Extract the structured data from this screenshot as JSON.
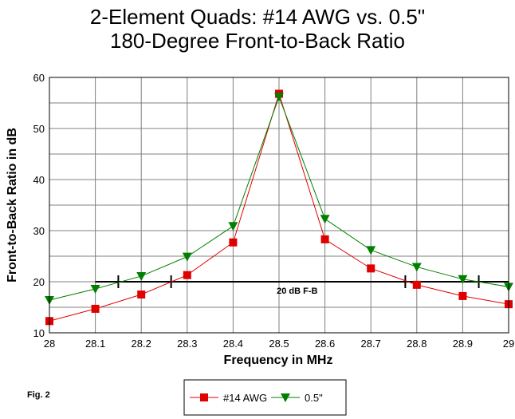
{
  "chart_data": {
    "type": "line",
    "title": "2-Element Quads:  #14 AWG vs. 0.5\"",
    "subtitle": "180-Degree Front-to-Back Ratio",
    "xlabel": "Frequency in MHz",
    "ylabel": "Front-to-Back Ratio in dB",
    "x": [
      28,
      28.1,
      28.2,
      28.3,
      28.4,
      28.5,
      28.6,
      28.7,
      28.8,
      28.9,
      29
    ],
    "x_tick_labels": [
      "28",
      "28.1",
      "28.2",
      "28.3",
      "28.4",
      "28.5",
      "28.6",
      "28.7",
      "28.8",
      "28.9",
      "29"
    ],
    "xlim": [
      28,
      29
    ],
    "ylim": [
      10,
      60
    ],
    "y_ticks": [
      10,
      20,
      30,
      40,
      50,
      60
    ],
    "grid": true,
    "series": [
      {
        "name": "#14 AWG",
        "color": "#e00000",
        "marker": "square",
        "values": [
          12.3,
          14.7,
          17.5,
          21.3,
          27.7,
          56.8,
          28.3,
          22.6,
          19.4,
          17.2,
          15.6
        ]
      },
      {
        "name": "0.5\"",
        "color": "#008000",
        "marker": "triangle-down",
        "values": [
          16.4,
          18.6,
          21.1,
          24.9,
          30.9,
          56.2,
          32.3,
          26.2,
          22.9,
          20.5,
          19.0
        ]
      }
    ],
    "reference_line": {
      "label": "20 dB F-B",
      "y": 20,
      "x_start": 28.1,
      "x_end": 29,
      "marks_x": [
        28.15,
        28.265,
        28.775,
        28.935
      ]
    },
    "legend_position": "bottom-center",
    "figure_label": "Fig. 2"
  }
}
